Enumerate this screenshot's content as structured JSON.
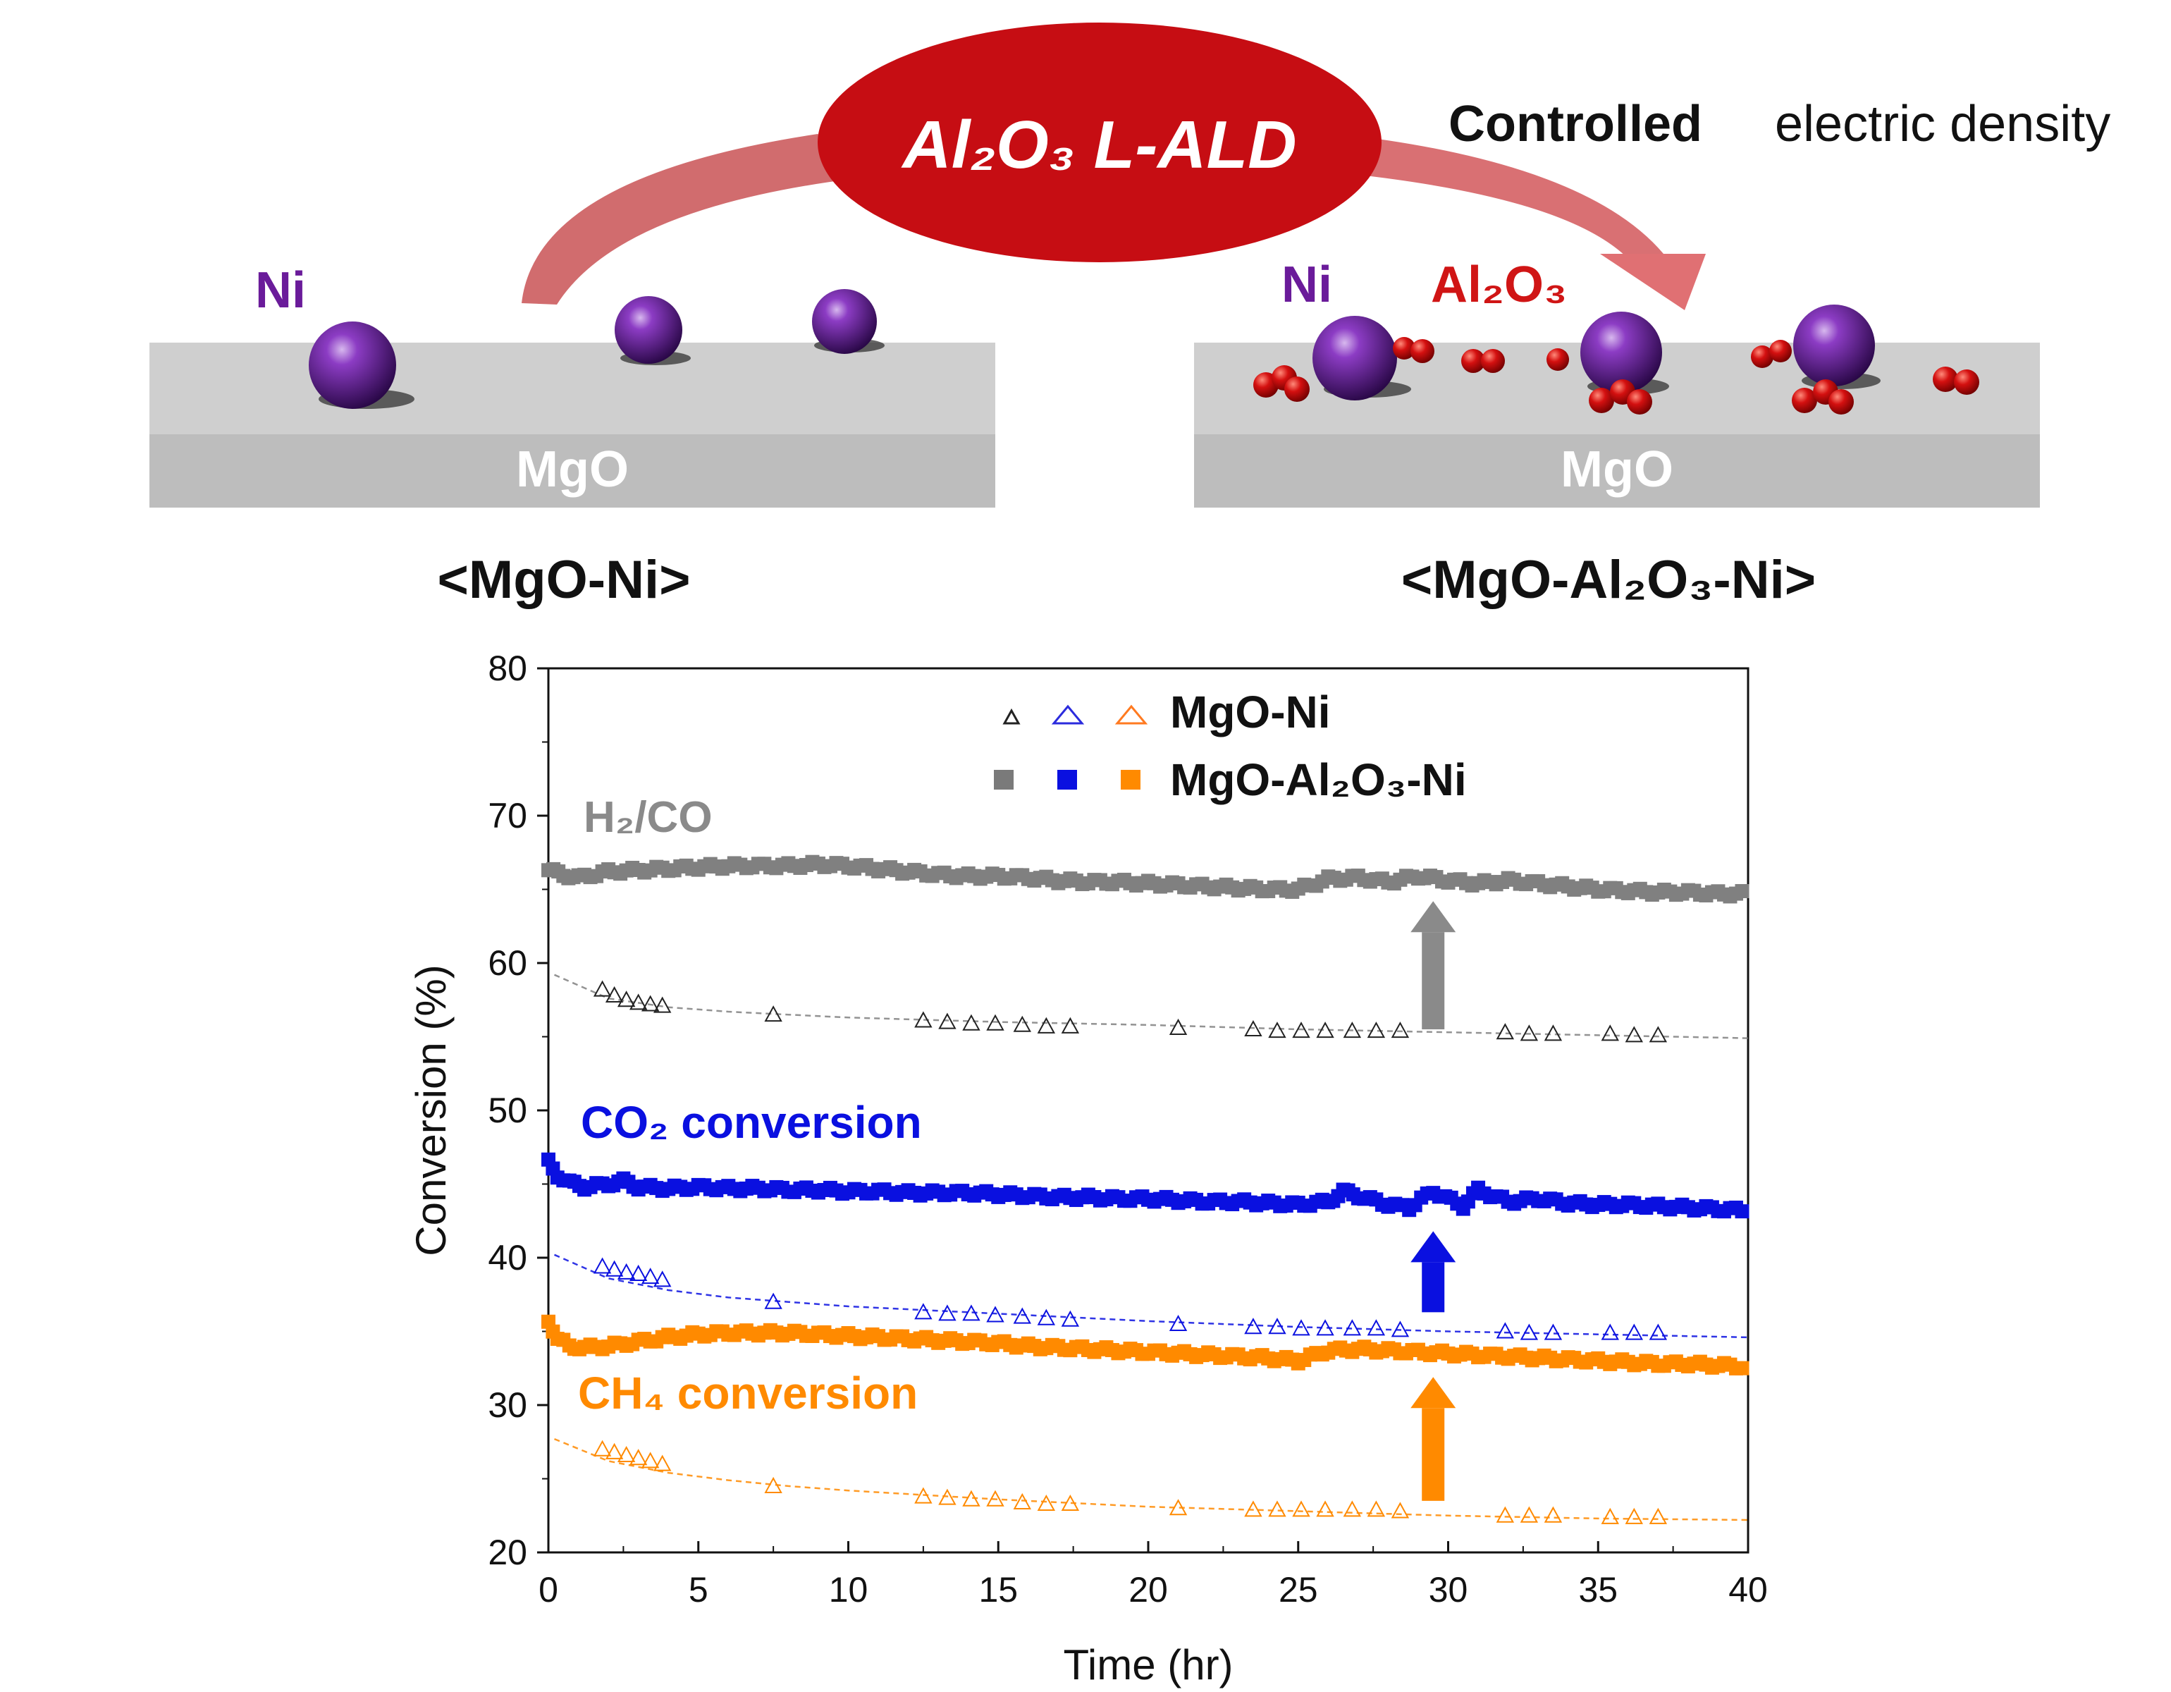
{
  "schematic": {
    "process_label": "Al₂O₃ L-ALD",
    "controlled_word": "Controlled",
    "electric_density_text": "electric density",
    "left": {
      "ni_label": "Ni",
      "support_label": "MgO",
      "caption": "<MgO-Ni>"
    },
    "right": {
      "ni_label": "Ni",
      "al2o3_label": "Al₂O₃",
      "support_label": "MgO",
      "caption": "<MgO-Al₂O₃-Ni>"
    }
  },
  "colors": {
    "ni_purple": "#6a1b9a",
    "ald_red": "#c40d12",
    "arrow_pink": "#cf6466",
    "support_gray": "#c2c2c2",
    "h2co_gray": "#808080",
    "co2_blue": "#0a10e0",
    "ch4_orange": "#ff8a00"
  },
  "chart_data": {
    "type": "line",
    "xlabel": "Time (hr)",
    "ylabel": "Conversion (%)",
    "xlim": [
      0,
      40
    ],
    "ylim": [
      20,
      80
    ],
    "xticks": [
      0,
      5,
      10,
      15,
      20,
      25,
      30,
      35,
      40
    ],
    "yticks": [
      20,
      30,
      40,
      50,
      60,
      70,
      80
    ],
    "legend": {
      "placement": "top-center",
      "entries": [
        "MgO-Ni",
        "MgO-Al₂O₃-Ni"
      ]
    },
    "annotations": [
      "H₂/CO",
      "CO₂ conversion",
      "CH₄ conversion"
    ],
    "improvement_arrows_at_x": 29.5,
    "series": [
      {
        "name": "H₂/CO",
        "catalyst": "MgO-Al₂O₃-Ni",
        "color": "#808080",
        "marker": "square",
        "x": [
          0,
          0.5,
          1,
          2,
          3,
          4,
          5,
          6,
          7,
          8,
          9,
          10,
          11,
          12,
          13,
          14,
          15,
          16,
          17,
          18,
          19,
          20,
          21,
          22,
          23,
          24,
          25,
          26,
          27,
          28,
          29,
          30,
          31,
          32,
          33,
          34,
          35,
          36,
          37,
          38,
          39,
          40
        ],
        "y": [
          66.3,
          66.0,
          65.8,
          66.2,
          66.3,
          66.4,
          66.5,
          66.6,
          66.6,
          66.6,
          66.7,
          66.6,
          66.4,
          66.2,
          66.0,
          65.9,
          65.9,
          65.8,
          65.6,
          65.5,
          65.5,
          65.4,
          65.3,
          65.2,
          65.1,
          65.0,
          65.0,
          65.7,
          65.8,
          65.5,
          65.9,
          65.6,
          65.4,
          65.6,
          65.4,
          65.2,
          65.0,
          64.9,
          64.8,
          64.8,
          64.7,
          64.7
        ]
      },
      {
        "name": "H₂/CO",
        "catalyst": "MgO-Ni",
        "color": "#808080",
        "marker": "triangle",
        "x": [
          1.8,
          2.2,
          2.6,
          3.0,
          3.4,
          3.8,
          7.5,
          12.5,
          13.3,
          14.1,
          14.9,
          15.8,
          16.6,
          17.4,
          21.0,
          23.5,
          24.3,
          25.1,
          25.9,
          26.8,
          27.6,
          28.4,
          31.9,
          32.7,
          33.5,
          35.4,
          36.2,
          37.0
        ],
        "y": [
          58.2,
          57.8,
          57.5,
          57.3,
          57.2,
          57.1,
          56.5,
          56.1,
          56.0,
          55.9,
          55.9,
          55.8,
          55.7,
          55.7,
          55.6,
          55.5,
          55.4,
          55.4,
          55.4,
          55.4,
          55.4,
          55.4,
          55.3,
          55.2,
          55.2,
          55.2,
          55.1,
          55.1
        ],
        "fit_x": [
          0.2,
          2,
          4,
          6,
          8,
          10,
          15,
          20,
          25,
          30,
          35,
          40
        ],
        "fit_y": [
          59.2,
          57.6,
          57.0,
          56.7,
          56.5,
          56.3,
          56.0,
          55.8,
          55.5,
          55.3,
          55.1,
          54.9
        ]
      },
      {
        "name": "CO₂ conversion",
        "catalyst": "MgO-Al₂O₃-Ni",
        "color": "#0a10e0",
        "marker": "square",
        "x": [
          0,
          0.3,
          0.7,
          1.2,
          2,
          2.5,
          3,
          4,
          5,
          6,
          7,
          8,
          9,
          10,
          11,
          12,
          13,
          14,
          15,
          16,
          17,
          18,
          19,
          20,
          21,
          22,
          23,
          24,
          25,
          26,
          26.5,
          27,
          28,
          28.7,
          29.5,
          30.5,
          31,
          32,
          33,
          34,
          35,
          36,
          37,
          38,
          39,
          40
        ],
        "y": [
          46.5,
          45.6,
          45.1,
          44.8,
          45.0,
          45.2,
          44.8,
          44.7,
          44.8,
          44.7,
          44.7,
          44.6,
          44.6,
          44.5,
          44.5,
          44.4,
          44.4,
          44.4,
          44.3,
          44.2,
          44.1,
          44.1,
          44.0,
          44.0,
          43.9,
          43.8,
          43.8,
          43.7,
          43.6,
          43.8,
          44.5,
          44.2,
          43.6,
          43.4,
          44.5,
          43.5,
          44.6,
          43.8,
          44.0,
          43.7,
          43.6,
          43.6,
          43.5,
          43.4,
          43.3,
          43.2
        ]
      },
      {
        "name": "CO₂ conversion",
        "catalyst": "MgO-Ni",
        "color": "#0a10e0",
        "marker": "triangle",
        "x": [
          1.8,
          2.2,
          2.6,
          3.0,
          3.4,
          3.8,
          7.5,
          12.5,
          13.3,
          14.1,
          14.9,
          15.8,
          16.6,
          17.4,
          21.0,
          23.5,
          24.3,
          25.1,
          25.9,
          26.8,
          27.6,
          28.4,
          31.9,
          32.7,
          33.5,
          35.4,
          36.2,
          37.0
        ],
        "y": [
          39.4,
          39.2,
          39.0,
          38.9,
          38.7,
          38.5,
          37.0,
          36.3,
          36.2,
          36.2,
          36.1,
          36.0,
          35.9,
          35.8,
          35.5,
          35.3,
          35.3,
          35.2,
          35.2,
          35.2,
          35.2,
          35.1,
          35.0,
          34.9,
          34.9,
          34.9,
          34.9,
          34.9
        ],
        "fit_x": [
          0.2,
          2,
          4,
          6,
          8,
          10,
          15,
          20,
          25,
          30,
          35,
          40
        ],
        "fit_y": [
          40.2,
          38.6,
          37.8,
          37.3,
          37.0,
          36.7,
          36.2,
          35.7,
          35.3,
          35.0,
          34.8,
          34.6
        ]
      },
      {
        "name": "CH₄ conversion",
        "catalyst": "MgO-Al₂O₃-Ni",
        "color": "#ff8a00",
        "marker": "square",
        "x": [
          0,
          0.3,
          0.7,
          1.2,
          2,
          3,
          4,
          5,
          6,
          7,
          8,
          9,
          10,
          11,
          12,
          13,
          14,
          15,
          16,
          17,
          18,
          19,
          20,
          21,
          22,
          23,
          24,
          25,
          26,
          27,
          28,
          29,
          30,
          31,
          32,
          33,
          34,
          35,
          36,
          37,
          38,
          39,
          40
        ],
        "y": [
          35.8,
          34.5,
          34.0,
          33.9,
          34.0,
          34.3,
          34.6,
          34.8,
          34.9,
          34.9,
          34.9,
          34.8,
          34.7,
          34.6,
          34.5,
          34.4,
          34.3,
          34.2,
          34.0,
          33.9,
          33.8,
          33.7,
          33.6,
          33.5,
          33.4,
          33.3,
          33.2,
          33.0,
          33.7,
          33.8,
          33.7,
          33.6,
          33.5,
          33.4,
          33.3,
          33.2,
          33.1,
          33.0,
          32.9,
          32.8,
          32.8,
          32.7,
          32.6
        ]
      },
      {
        "name": "CH₄ conversion",
        "catalyst": "MgO-Ni",
        "color": "#ff8a00",
        "marker": "triangle",
        "x": [
          1.8,
          2.2,
          2.6,
          3.0,
          3.4,
          3.8,
          7.5,
          12.5,
          13.3,
          14.1,
          14.9,
          15.8,
          16.6,
          17.4,
          21.0,
          23.5,
          24.3,
          25.1,
          25.9,
          26.8,
          27.6,
          28.4,
          31.9,
          32.7,
          33.5,
          35.4,
          36.2,
          37.0
        ],
        "y": [
          27.0,
          26.8,
          26.6,
          26.4,
          26.2,
          26.0,
          24.5,
          23.8,
          23.7,
          23.6,
          23.6,
          23.4,
          23.3,
          23.3,
          23.0,
          22.9,
          22.9,
          22.9,
          22.9,
          22.9,
          22.9,
          22.8,
          22.5,
          22.5,
          22.5,
          22.4,
          22.4,
          22.4
        ],
        "fit_x": [
          0.2,
          2,
          4,
          6,
          8,
          10,
          15,
          20,
          25,
          30,
          35,
          40
        ],
        "fit_y": [
          27.7,
          26.2,
          25.4,
          24.9,
          24.5,
          24.2,
          23.6,
          23.1,
          22.8,
          22.5,
          22.3,
          22.2
        ]
      }
    ]
  }
}
